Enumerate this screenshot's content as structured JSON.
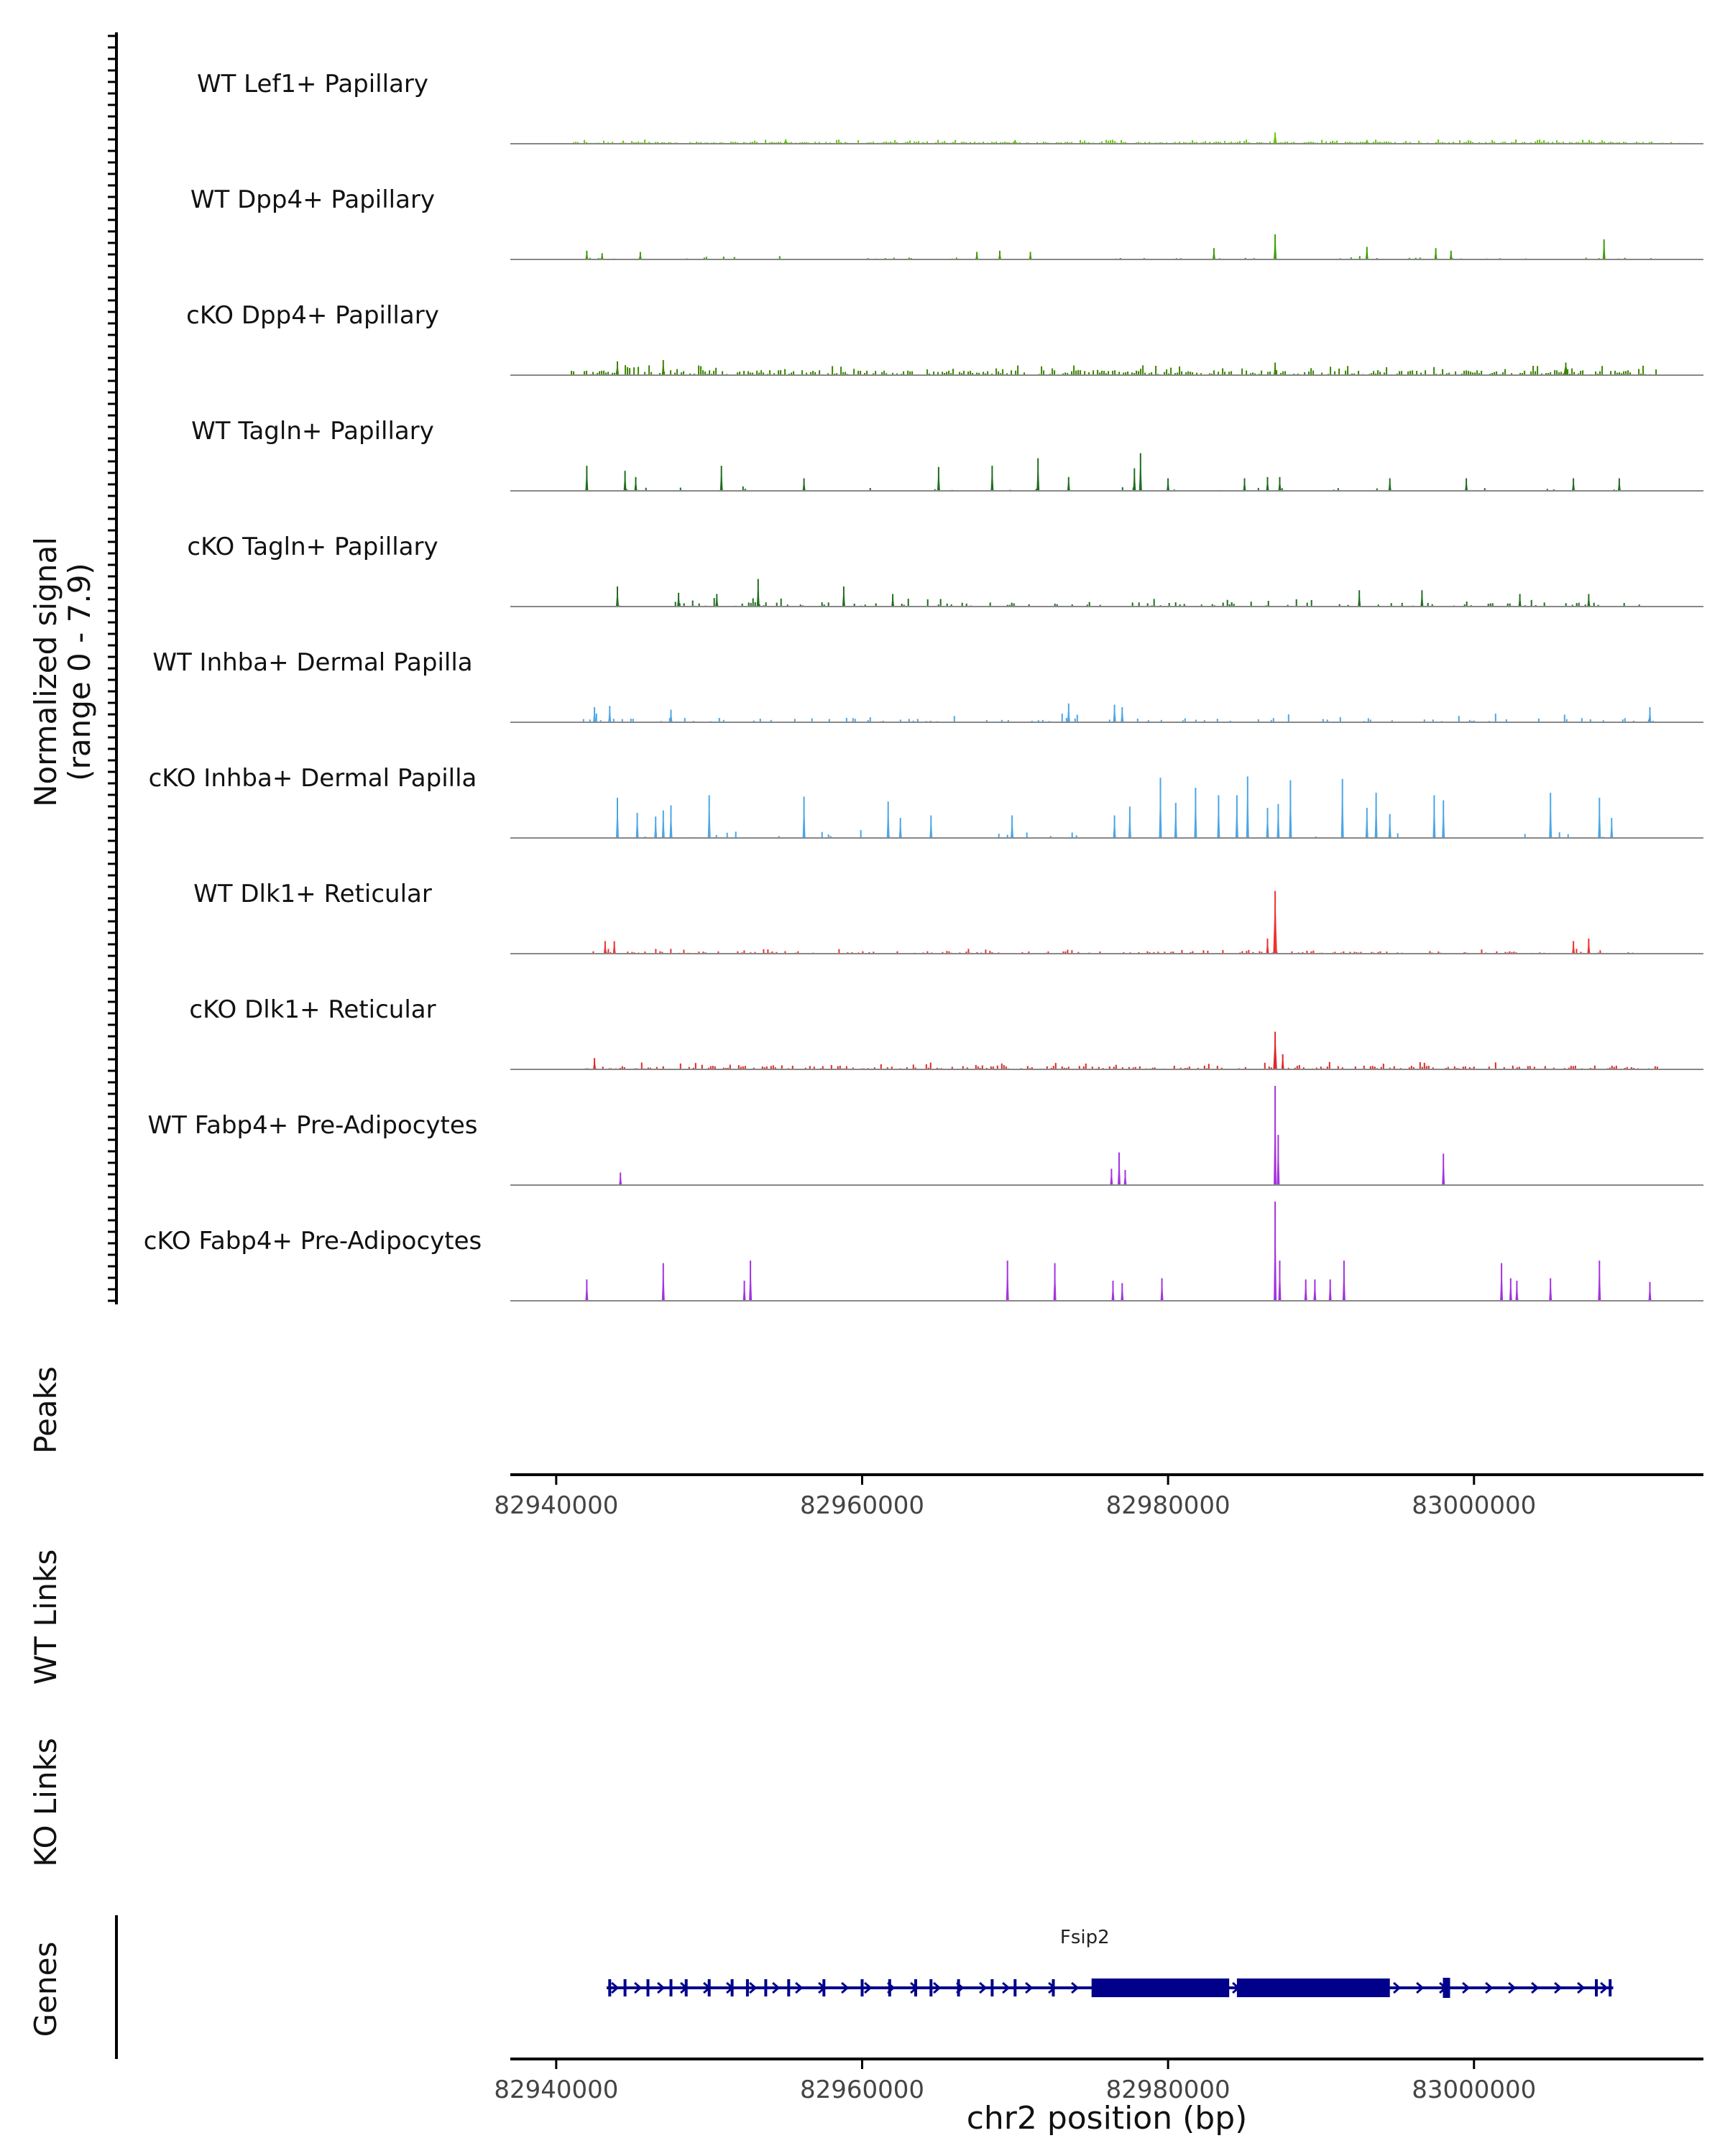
{
  "chart_data": {
    "type": "area",
    "chromosome": "chr2",
    "xlabel": "chr2 position (bp)",
    "xlim": [
      82937000,
      83015000
    ],
    "x_ticks": [
      82940000,
      82960000,
      82980000,
      83000000
    ],
    "x_tick_labels": [
      "82940000",
      "82960000",
      "82980000",
      "83000000"
    ],
    "ylabel_line1": "Normalized signal",
    "ylabel_line2": "(range 0 - 7.9)",
    "ylim": [
      0,
      7.9
    ],
    "panel_labels": {
      "peaks": "Peaks",
      "wt_links": "WT Links",
      "ko_links": "KO Links",
      "genes": "Genes"
    },
    "tracks": [
      {
        "name": "WT Lef1+ Papillary",
        "color": "#66CC00",
        "noise_start": 82941000,
        "noise_end": 83013500,
        "noise_density": 1.0,
        "noise_max": 0.35,
        "peaks": [
          [
            82987000,
            0.9,
            250
          ],
          [
            82955000,
            0.35,
            300
          ],
          [
            82970000,
            0.3,
            300
          ],
          [
            82993000,
            0.3,
            300
          ]
        ]
      },
      {
        "name": "WT Dpp4+ Papillary",
        "color": "#3A9F00",
        "noise_start": 82941500,
        "noise_end": 83012000,
        "noise_density": 0.12,
        "noise_max": 0.3,
        "peaks": [
          [
            82942000,
            0.7,
            120
          ],
          [
            82943000,
            0.5,
            120
          ],
          [
            82945500,
            0.6,
            120
          ],
          [
            82967500,
            0.6,
            120
          ],
          [
            82969000,
            0.7,
            120
          ],
          [
            82971000,
            0.6,
            120
          ],
          [
            82983000,
            0.9,
            120
          ],
          [
            82987000,
            2.0,
            200
          ],
          [
            82993000,
            1.0,
            150
          ],
          [
            82997500,
            0.9,
            120
          ],
          [
            82998500,
            0.7,
            120
          ],
          [
            83008500,
            1.6,
            150
          ]
        ]
      },
      {
        "name": "cKO Dpp4+ Papillary",
        "color": "#3A8500",
        "noise_start": 82941000,
        "noise_end": 83012000,
        "noise_density": 0.7,
        "noise_max": 0.8,
        "peaks": [
          [
            82944000,
            1.1,
            200
          ],
          [
            82947000,
            1.2,
            200
          ],
          [
            82987000,
            1.0,
            200
          ],
          [
            83006000,
            1.0,
            300
          ]
        ]
      },
      {
        "name": "WT Tagln+ Papillary",
        "color": "#1F6F1F",
        "noise_start": 82941500,
        "noise_end": 83010500,
        "noise_density": 0.06,
        "noise_max": 0.5,
        "peaks": [
          [
            82942000,
            2.0,
            100
          ],
          [
            82944500,
            1.6,
            100
          ],
          [
            82945200,
            1.1,
            100
          ],
          [
            82950800,
            2.0,
            100
          ],
          [
            82956200,
            1.0,
            100
          ],
          [
            82965000,
            1.9,
            100
          ],
          [
            82968500,
            2.0,
            100
          ],
          [
            82971500,
            2.6,
            100
          ],
          [
            82973500,
            1.1,
            100
          ],
          [
            82977800,
            1.8,
            100
          ],
          [
            82978200,
            3.0,
            100
          ],
          [
            82980000,
            1.0,
            100
          ],
          [
            82985000,
            1.0,
            100
          ],
          [
            82986500,
            1.1,
            100
          ],
          [
            82987300,
            1.1,
            100
          ],
          [
            82994500,
            1.0,
            100
          ],
          [
            82999500,
            1.0,
            100
          ],
          [
            83006500,
            1.0,
            100
          ],
          [
            83009500,
            1.0,
            100
          ]
        ]
      },
      {
        "name": "cKO Tagln+ Papillary",
        "color": "#1F6F1F",
        "noise_start": 82943000,
        "noise_end": 83011500,
        "noise_density": 0.25,
        "noise_max": 0.7,
        "peaks": [
          [
            82944000,
            1.6,
            120
          ],
          [
            82948000,
            1.1,
            120
          ],
          [
            82950500,
            1.0,
            120
          ],
          [
            82953200,
            2.2,
            120
          ],
          [
            82958800,
            1.6,
            120
          ],
          [
            82962000,
            1.0,
            120
          ],
          [
            82992500,
            1.3,
            120
          ],
          [
            82996600,
            1.3,
            120
          ],
          [
            83003000,
            1.0,
            120
          ],
          [
            83007500,
            1.0,
            120
          ]
        ]
      },
      {
        "name": "WT Inhba+ Dermal Papilla",
        "color": "#4CA6E6",
        "noise_start": 82941500,
        "noise_end": 83012500,
        "noise_density": 0.18,
        "noise_max": 0.7,
        "peaks": [
          [
            82942500,
            1.2,
            120
          ],
          [
            82943500,
            1.3,
            120
          ],
          [
            82947500,
            1.0,
            120
          ],
          [
            82973500,
            1.5,
            150
          ],
          [
            82976500,
            1.4,
            200
          ],
          [
            82977000,
            1.2,
            200
          ],
          [
            83011500,
            1.2,
            120
          ]
        ]
      },
      {
        "name": "cKO Inhba+ Dermal Papilla",
        "color": "#4CA6E6",
        "noise_start": 82943000,
        "noise_end": 83009500,
        "noise_density": 0.05,
        "noise_max": 1.0,
        "peaks": [
          [
            82944000,
            3.2,
            80
          ],
          [
            82945300,
            2.0,
            80
          ],
          [
            82946500,
            1.7,
            80
          ],
          [
            82947000,
            2.2,
            80
          ],
          [
            82947500,
            2.6,
            80
          ],
          [
            82950000,
            3.4,
            80
          ],
          [
            82956200,
            3.3,
            80
          ],
          [
            82961700,
            2.9,
            80
          ],
          [
            82962500,
            1.6,
            80
          ],
          [
            82964500,
            1.8,
            80
          ],
          [
            82969800,
            1.8,
            80
          ],
          [
            82976500,
            1.8,
            80
          ],
          [
            82977500,
            2.5,
            80
          ],
          [
            82979500,
            4.8,
            80
          ],
          [
            82980500,
            2.8,
            80
          ],
          [
            82981800,
            4.0,
            80
          ],
          [
            82983300,
            3.4,
            80
          ],
          [
            82984500,
            3.4,
            80
          ],
          [
            82985200,
            4.9,
            80
          ],
          [
            82986500,
            2.4,
            80
          ],
          [
            82987200,
            2.7,
            80
          ],
          [
            82988000,
            4.6,
            80
          ],
          [
            82991400,
            4.7,
            80
          ],
          [
            82993000,
            2.4,
            80
          ],
          [
            82993600,
            3.6,
            80
          ],
          [
            82994500,
            1.9,
            80
          ],
          [
            82997400,
            3.4,
            80
          ],
          [
            82998000,
            3.0,
            80
          ],
          [
            83005000,
            3.6,
            80
          ],
          [
            83008200,
            3.2,
            80
          ],
          [
            83009000,
            1.6,
            80
          ]
        ]
      },
      {
        "name": "WT Dlk1+ Reticular",
        "color": "#F03030",
        "noise_start": 82942000,
        "noise_end": 83011000,
        "noise_density": 0.35,
        "noise_max": 0.4,
        "peaks": [
          [
            82943200,
            1.0,
            120
          ],
          [
            82943800,
            1.0,
            120
          ],
          [
            82987000,
            5.0,
            250
          ],
          [
            82986500,
            1.2,
            150
          ],
          [
            83007500,
            1.2,
            120
          ],
          [
            83006500,
            1.0,
            120
          ]
        ]
      },
      {
        "name": "cKO Dlk1+ Reticular",
        "color": "#E02828",
        "noise_start": 82941500,
        "noise_end": 83012000,
        "noise_density": 0.55,
        "noise_max": 0.6,
        "peaks": [
          [
            82942500,
            0.9,
            150
          ],
          [
            82987000,
            3.0,
            250
          ],
          [
            82987500,
            1.2,
            150
          ]
        ]
      },
      {
        "name": "WT Fabp4+ Pre-Adipocytes",
        "color": "#A333E0",
        "noise_start": 82941000,
        "noise_end": 83012000,
        "noise_density": 0.0,
        "noise_max": 0.0,
        "peaks": [
          [
            82944200,
            1.0,
            80
          ],
          [
            82976300,
            1.3,
            80
          ],
          [
            82976800,
            2.6,
            80
          ],
          [
            82977200,
            1.2,
            80
          ],
          [
            82987000,
            7.9,
            80
          ],
          [
            82987200,
            4.0,
            80
          ],
          [
            82998000,
            2.5,
            80
          ]
        ]
      },
      {
        "name": "cKO Fabp4+ Pre-Adipocytes",
        "color": "#A333E0",
        "noise_start": 82941000,
        "noise_end": 83012000,
        "noise_density": 0.0,
        "noise_max": 0.0,
        "peaks": [
          [
            82942000,
            1.7,
            80
          ],
          [
            82947000,
            3.0,
            80
          ],
          [
            82952300,
            1.6,
            80
          ],
          [
            82952700,
            3.2,
            80
          ],
          [
            82969500,
            3.2,
            80
          ],
          [
            82972600,
            3.0,
            80
          ],
          [
            82976400,
            1.6,
            80
          ],
          [
            82977000,
            1.4,
            80
          ],
          [
            82979600,
            1.8,
            80
          ],
          [
            82987000,
            7.9,
            80
          ],
          [
            82987300,
            3.2,
            80
          ],
          [
            82989000,
            1.7,
            80
          ],
          [
            82989600,
            1.7,
            80
          ],
          [
            82990600,
            1.7,
            80
          ],
          [
            82991500,
            3.2,
            80
          ],
          [
            83001800,
            3.0,
            80
          ],
          [
            83002400,
            1.8,
            80
          ],
          [
            83002800,
            1.6,
            80
          ],
          [
            83005000,
            1.8,
            80
          ],
          [
            83008200,
            3.2,
            80
          ],
          [
            83011500,
            1.5,
            80
          ]
        ]
      }
    ],
    "genes": [
      {
        "name": "Fsip2",
        "strand": "+",
        "start": 82943300,
        "end": 83009100,
        "color": "#00008B",
        "cds": [
          [
            82975000,
            82984000
          ],
          [
            82984500,
            82994500
          ]
        ],
        "exons": [
          82943500,
          82944500,
          82946000,
          82947500,
          82948500,
          82950000,
          82951500,
          82952500,
          82953700,
          82955200,
          82957500,
          82960000,
          82961800,
          82963500,
          82964500,
          82966300,
          82968500,
          82970000,
          82972500,
          82998200,
          83008000,
          83008900
        ]
      }
    ]
  }
}
